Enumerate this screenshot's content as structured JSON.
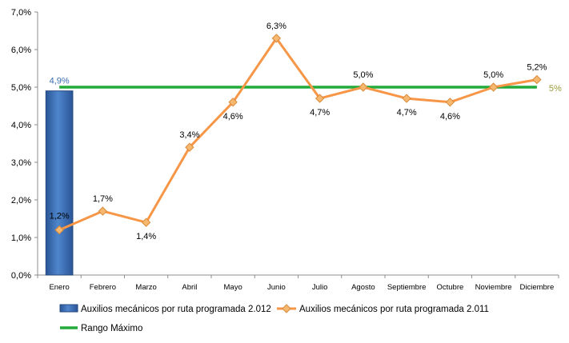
{
  "chart_data": {
    "type": "line",
    "categories": [
      "Enero",
      "Febrero",
      "Marzo",
      "Abril",
      "Mayo",
      "Junio",
      "Julio",
      "Agosto",
      "Septiembre",
      "Octubre",
      "Noviembre",
      "Diciembre"
    ],
    "ylim": [
      0,
      7
    ],
    "y_ticks": [
      "0,0%",
      "1,0%",
      "2,0%",
      "3,0%",
      "4,0%",
      "5,0%",
      "6,0%",
      "7,0%"
    ],
    "grid": false,
    "legend_position": "bottom",
    "series": [
      {
        "name": "Auxilios mecánicos por ruta programada 2.012",
        "kind": "bar",
        "color": "#3A6DB5",
        "values": [
          4.9,
          null,
          null,
          null,
          null,
          null,
          null,
          null,
          null,
          null,
          null,
          null
        ],
        "labels": [
          "4,9%"
        ]
      },
      {
        "name": "Auxilios mecánicos por ruta programada 2.011",
        "kind": "line",
        "color": "#F79646",
        "marker_color": "#F5B86E",
        "values": [
          1.2,
          1.7,
          1.4,
          3.4,
          4.6,
          6.3,
          4.7,
          5.0,
          4.7,
          4.6,
          5.0,
          5.2
        ],
        "labels": [
          "1,2%",
          "1,7%",
          "1,4%",
          "3,4%",
          "4,6%",
          "6,3%",
          "4,7%",
          "5,0%",
          "4,7%",
          "4,6%",
          "5,0%",
          "5,2%"
        ]
      },
      {
        "name": "Rango Máximo",
        "kind": "line",
        "color": "#22AA3A",
        "values": [
          5,
          5,
          5,
          5,
          5,
          5,
          5,
          5,
          5,
          5,
          5,
          5
        ],
        "end_label": "5%",
        "end_label_color": "#9B9B3A"
      }
    ]
  }
}
